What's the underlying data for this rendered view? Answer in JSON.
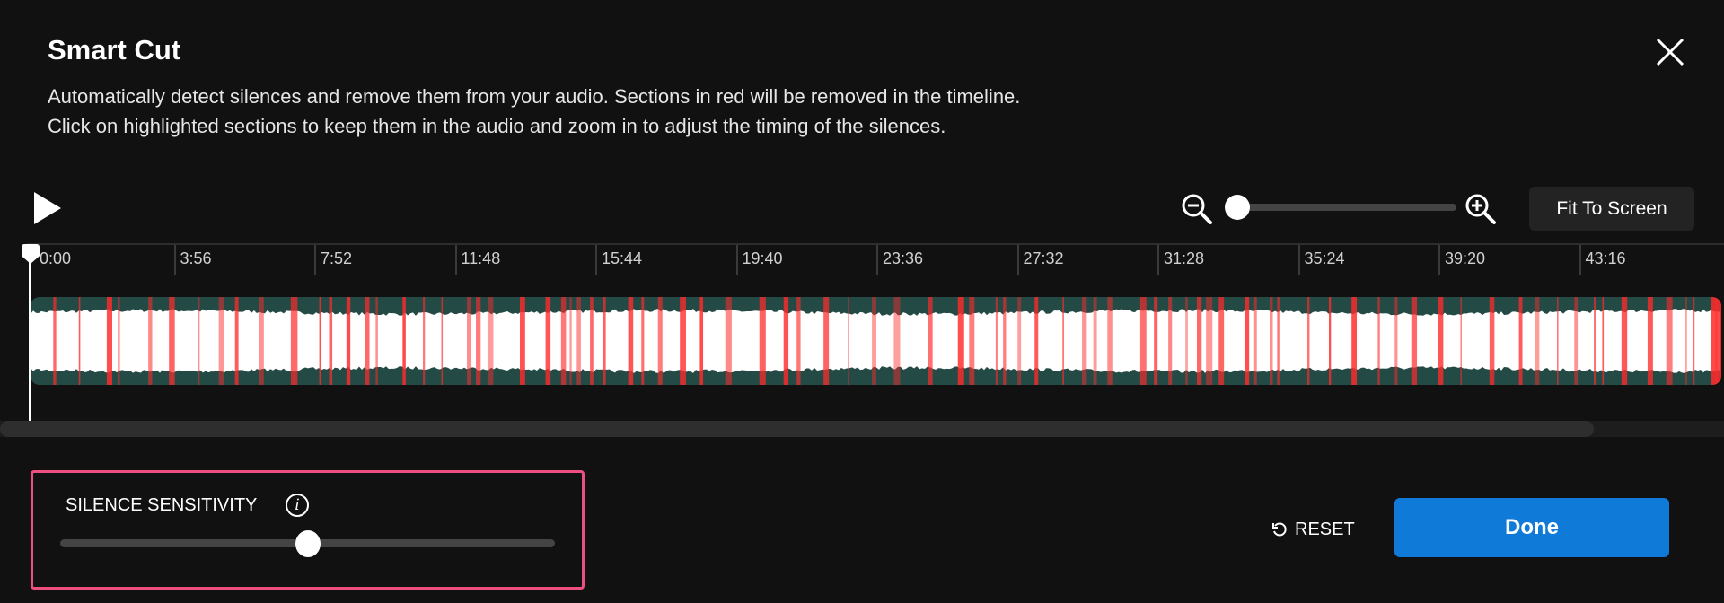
{
  "dialog": {
    "title": "Smart Cut",
    "description_line1": "Automatically detect silences and remove them from your audio. Sections in red will be removed in the timeline.",
    "description_line2": "Click on highlighted sections to keep them in the audio and zoom in to adjust the timing of the silences.",
    "close_icon": "close-icon"
  },
  "toolbar": {
    "play_icon": "play-icon",
    "zoom_out_icon": "zoom-out-icon",
    "zoom_in_icon": "zoom-in-icon",
    "zoom_level": 0,
    "fit_label": "Fit To Screen"
  },
  "timeline": {
    "ticks": [
      "0:00",
      "3:56",
      "7:52",
      "11:48",
      "15:44",
      "19:40",
      "23:36",
      "27:32",
      "31:28",
      "35:24",
      "39:20",
      "43:16"
    ],
    "playhead": "0:00",
    "colors": {
      "waveform": "#ffffff",
      "background": "#244a46",
      "silence": "#ff2a2a"
    }
  },
  "sensitivity": {
    "label": "SILENCE SENSITIVITY",
    "info_icon": "i",
    "value_percent": 50
  },
  "footer": {
    "reset_label": "RESET",
    "done_label": "Done",
    "accent": "#0f7ad8"
  }
}
